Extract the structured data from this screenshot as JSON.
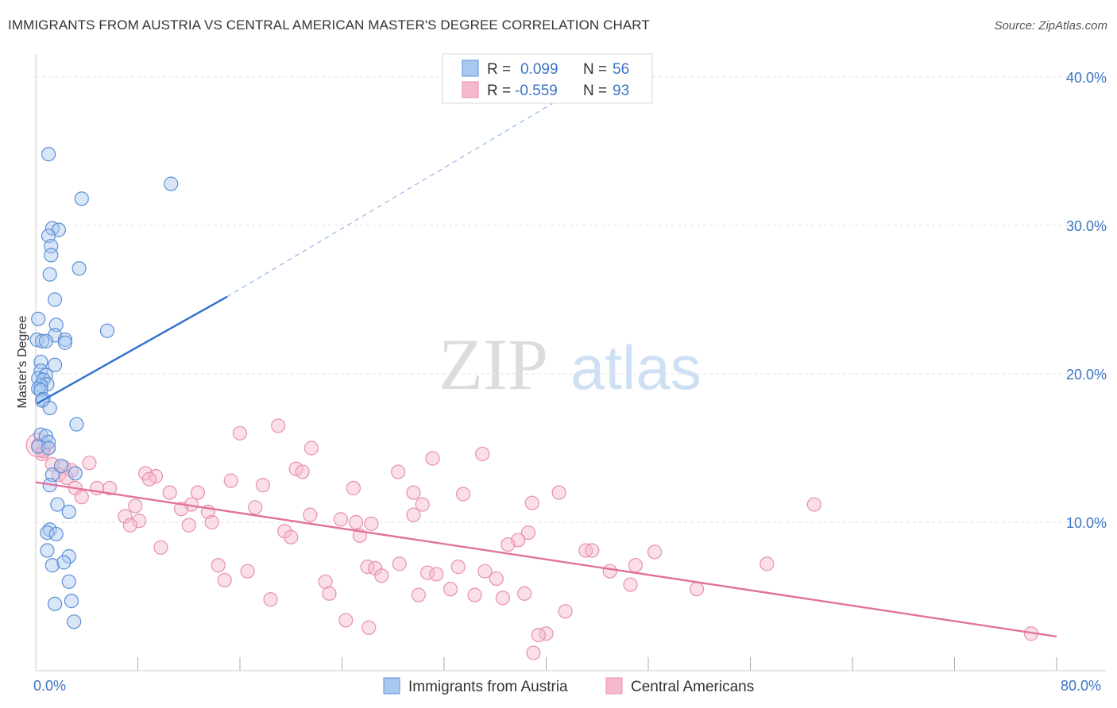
{
  "header": {
    "title": "IMMIGRANTS FROM AUSTRIA VS CENTRAL AMERICAN MASTER'S DEGREE CORRELATION CHART",
    "source": "Source: ZipAtlas.com"
  },
  "watermark": {
    "zip": "ZIP",
    "atlas": "atlas"
  },
  "colors": {
    "blue_fill": "#a9c8f0",
    "blue_stroke": "#5b8fd6",
    "blue_line": "#2f6fcf",
    "pink_fill": "#f5b8cc",
    "pink_stroke": "#e890ad",
    "pink_line": "#e0739b",
    "tick_text": "#3b73c4",
    "grid": "#e2e2e2"
  },
  "legend": {
    "rows": [
      {
        "r_label": "R =",
        "r_value": "0.099",
        "n_label": "N =",
        "n_value": "56"
      },
      {
        "r_label": "R =",
        "r_value": "-0.559",
        "n_label": "N =",
        "n_value": "93"
      }
    ]
  },
  "chart_data": {
    "type": "scatter",
    "ylabel": "Master's Degree",
    "xlabel": "",
    "xlim": [
      0,
      80
    ],
    "ylim": [
      0,
      40
    ],
    "x_tick_labels": [
      "0.0%",
      "80.0%"
    ],
    "y_ticks": [
      10,
      20,
      30,
      40
    ],
    "y_tick_labels": [
      "10.0%",
      "20.0%",
      "30.0%",
      "40.0%"
    ],
    "grid": "horizontal dashed",
    "legend_position": "top-center",
    "series": [
      {
        "name": "Immigrants from Austria",
        "color": "blue",
        "trend": {
          "x": [
            0.1,
            15
          ],
          "y": [
            18.0,
            25.2
          ],
          "dashed_extension_to": [
            43,
            39.5
          ]
        },
        "points": [
          [
            1.0,
            34.8
          ],
          [
            10.6,
            32.8
          ],
          [
            3.6,
            31.8
          ],
          [
            1.3,
            29.8
          ],
          [
            1.8,
            29.7
          ],
          [
            1.0,
            29.3
          ],
          [
            1.2,
            28.6
          ],
          [
            1.2,
            28.0
          ],
          [
            3.4,
            27.1
          ],
          [
            1.1,
            26.7
          ],
          [
            1.5,
            25.0
          ],
          [
            0.2,
            23.7
          ],
          [
            1.6,
            23.3
          ],
          [
            5.6,
            22.9
          ],
          [
            1.5,
            22.6
          ],
          [
            0.1,
            22.3
          ],
          [
            0.5,
            22.2
          ],
          [
            0.8,
            22.2
          ],
          [
            2.3,
            22.3
          ],
          [
            2.3,
            22.1
          ],
          [
            0.4,
            20.8
          ],
          [
            1.5,
            20.6
          ],
          [
            0.4,
            20.2
          ],
          [
            0.8,
            19.9
          ],
          [
            0.2,
            19.7
          ],
          [
            0.6,
            19.6
          ],
          [
            0.9,
            19.3
          ],
          [
            0.4,
            19.2
          ],
          [
            0.2,
            19.0
          ],
          [
            0.4,
            18.9
          ],
          [
            0.6,
            18.3
          ],
          [
            0.5,
            18.2
          ],
          [
            1.1,
            17.7
          ],
          [
            3.2,
            16.6
          ],
          [
            0.4,
            15.9
          ],
          [
            0.8,
            15.8
          ],
          [
            1.0,
            15.4
          ],
          [
            0.2,
            15.1
          ],
          [
            1.3,
            13.2
          ],
          [
            3.1,
            13.3
          ],
          [
            2.0,
            13.8
          ],
          [
            1.1,
            12.5
          ],
          [
            1.7,
            11.2
          ],
          [
            2.6,
            10.7
          ],
          [
            1.1,
            9.5
          ],
          [
            0.9,
            9.3
          ],
          [
            1.6,
            9.2
          ],
          [
            0.9,
            8.1
          ],
          [
            2.6,
            7.7
          ],
          [
            1.3,
            7.1
          ],
          [
            2.2,
            7.3
          ],
          [
            2.6,
            6.0
          ],
          [
            2.8,
            4.7
          ],
          [
            1.5,
            4.5
          ],
          [
            3.0,
            3.3
          ],
          [
            1.0,
            15.0
          ]
        ]
      },
      {
        "name": "Central Americans",
        "color": "pink",
        "trend": {
          "x": [
            0,
            80
          ],
          "y": [
            12.7,
            2.3
          ]
        },
        "points": [
          [
            0.2,
            15.2
          ],
          [
            0.5,
            14.6
          ],
          [
            1.3,
            13.9
          ],
          [
            2.2,
            13.7
          ],
          [
            1.8,
            13.2
          ],
          [
            4.2,
            14.0
          ],
          [
            16.0,
            16.0
          ],
          [
            19.0,
            16.5
          ],
          [
            21.6,
            15.0
          ],
          [
            31.1,
            14.3
          ],
          [
            35.0,
            14.6
          ],
          [
            20.4,
            13.6
          ],
          [
            20.9,
            13.4
          ],
          [
            28.4,
            13.4
          ],
          [
            8.6,
            13.3
          ],
          [
            9.4,
            13.1
          ],
          [
            8.9,
            12.9
          ],
          [
            15.3,
            12.8
          ],
          [
            17.8,
            12.5
          ],
          [
            24.9,
            12.3
          ],
          [
            3.1,
            12.3
          ],
          [
            4.8,
            12.3
          ],
          [
            5.8,
            12.3
          ],
          [
            10.5,
            12.0
          ],
          [
            12.7,
            12.0
          ],
          [
            29.6,
            12.0
          ],
          [
            33.5,
            11.9
          ],
          [
            41.0,
            12.0
          ],
          [
            30.3,
            11.2
          ],
          [
            38.9,
            11.3
          ],
          [
            61.0,
            11.2
          ],
          [
            7.8,
            11.1
          ],
          [
            12.2,
            11.2
          ],
          [
            11.4,
            10.9
          ],
          [
            17.2,
            11.0
          ],
          [
            13.5,
            10.7
          ],
          [
            21.5,
            10.5
          ],
          [
            29.6,
            10.5
          ],
          [
            7.0,
            10.4
          ],
          [
            8.1,
            10.1
          ],
          [
            3.6,
            11.7
          ],
          [
            23.9,
            10.2
          ],
          [
            25.1,
            10.0
          ],
          [
            13.8,
            10.0
          ],
          [
            12.0,
            9.8
          ],
          [
            26.3,
            9.9
          ],
          [
            7.4,
            9.8
          ],
          [
            19.5,
            9.4
          ],
          [
            20.0,
            9.0
          ],
          [
            25.4,
            9.1
          ],
          [
            38.6,
            9.3
          ],
          [
            37.8,
            8.8
          ],
          [
            37.0,
            8.5
          ],
          [
            9.8,
            8.3
          ],
          [
            43.1,
            8.1
          ],
          [
            43.6,
            8.1
          ],
          [
            48.5,
            8.0
          ],
          [
            28.5,
            7.2
          ],
          [
            26.0,
            7.0
          ],
          [
            26.6,
            6.9
          ],
          [
            33.1,
            7.0
          ],
          [
            35.2,
            6.7
          ],
          [
            47.0,
            7.1
          ],
          [
            57.3,
            7.2
          ],
          [
            14.3,
            7.1
          ],
          [
            16.6,
            6.7
          ],
          [
            30.7,
            6.6
          ],
          [
            27.1,
            6.4
          ],
          [
            31.4,
            6.5
          ],
          [
            36.1,
            6.2
          ],
          [
            22.7,
            6.0
          ],
          [
            14.8,
            6.1
          ],
          [
            45.0,
            6.7
          ],
          [
            46.6,
            5.8
          ],
          [
            51.8,
            5.5
          ],
          [
            32.5,
            5.5
          ],
          [
            30.0,
            5.1
          ],
          [
            34.4,
            5.1
          ],
          [
            36.6,
            4.9
          ],
          [
            38.3,
            5.2
          ],
          [
            23.0,
            5.2
          ],
          [
            18.4,
            4.8
          ],
          [
            41.5,
            4.0
          ],
          [
            24.3,
            3.4
          ],
          [
            26.1,
            2.9
          ],
          [
            40.0,
            2.5
          ],
          [
            39.4,
            2.4
          ],
          [
            39.0,
            1.2
          ],
          [
            78.0,
            2.5
          ],
          [
            2.8,
            13.5
          ],
          [
            1.0,
            15.0
          ],
          [
            0.6,
            14.8
          ],
          [
            2.4,
            13.0
          ]
        ]
      }
    ]
  },
  "bottom_legend": {
    "items": [
      "Immigrants from Austria",
      "Central Americans"
    ]
  }
}
